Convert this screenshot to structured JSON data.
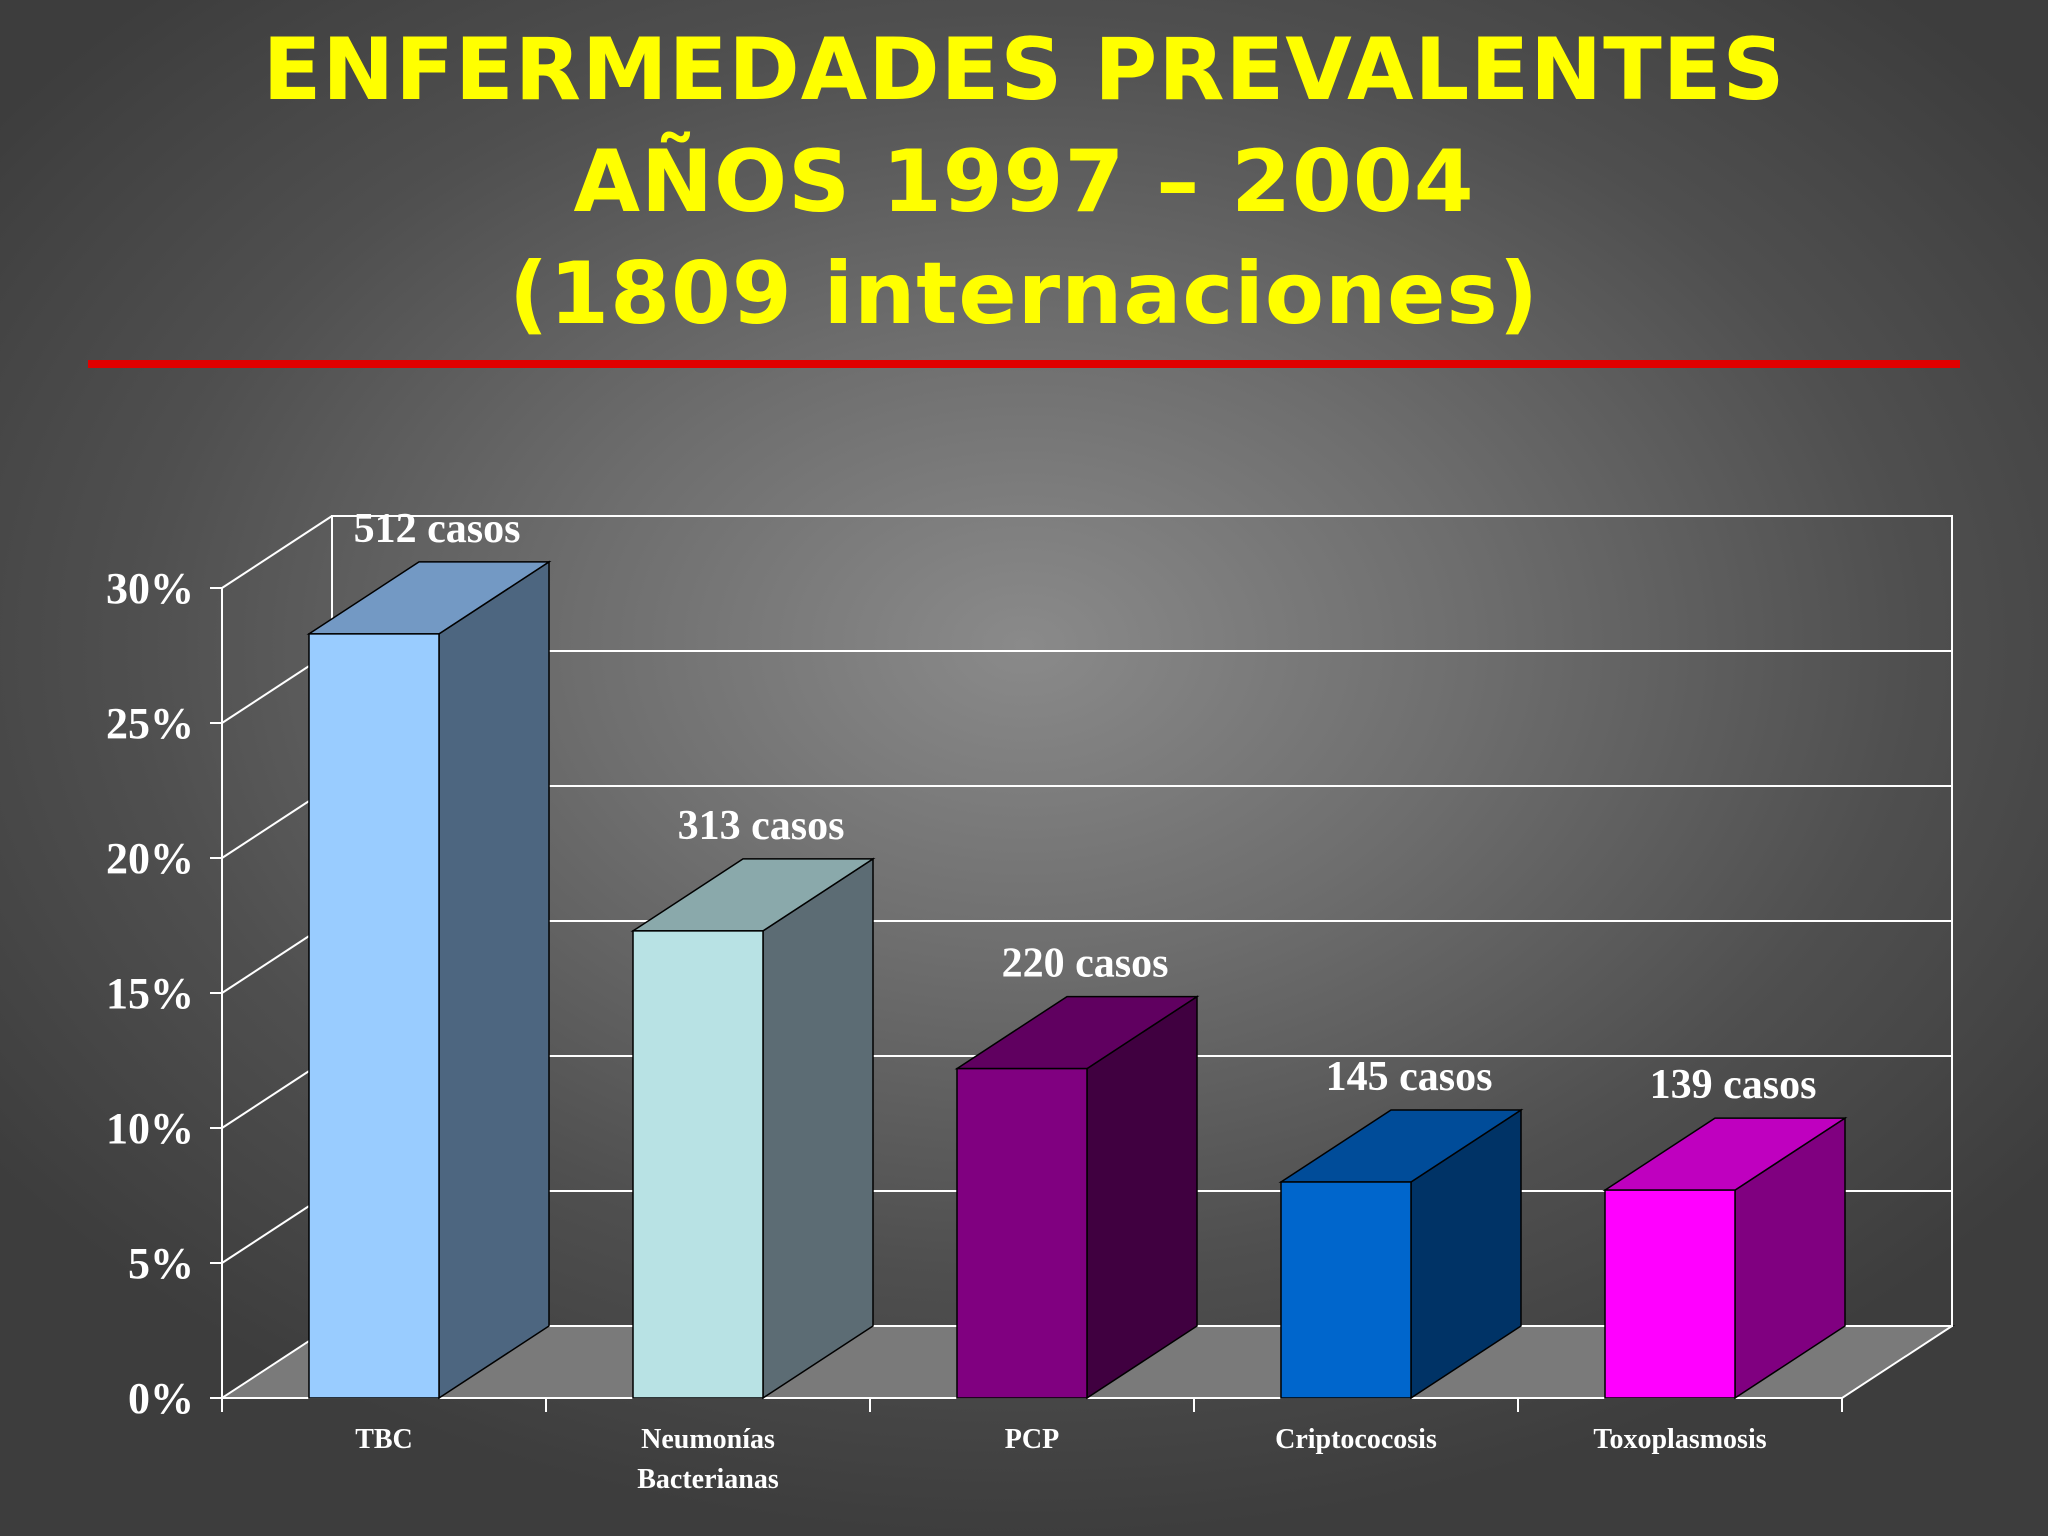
{
  "title": {
    "line1": "ENFERMEDADES PREVALENTES",
    "line2": "AÑOS 1997 – 2004",
    "line3": "(1809 internaciones)"
  },
  "colors": {
    "title": "#ffff00",
    "rule": "#e00000",
    "text": "#ffffff"
  },
  "chart_data": {
    "type": "bar",
    "style": "3d-column",
    "categories": [
      [
        "TBC"
      ],
      [
        "Neumonías",
        "Bacterianas"
      ],
      [
        "PCP"
      ],
      [
        "Criptococosis"
      ],
      [
        "Toxoplasmosis"
      ]
    ],
    "values": [
      28.3,
      17.3,
      12.2,
      8.0,
      7.7
    ],
    "data_labels": [
      "512 casos",
      "313 casos",
      "220 casos",
      "145 casos",
      "139 casos"
    ],
    "bar_colors": [
      {
        "front": "#99ccff",
        "top": "#7399c4",
        "side": "#4d6680"
      },
      {
        "front": "#b8e2e4",
        "top": "#8aa9ab",
        "side": "#5c6c74"
      },
      {
        "front": "#800080",
        "top": "#600060",
        "side": "#400040"
      },
      {
        "front": "#0066cc",
        "top": "#004c99",
        "side": "#003366"
      },
      {
        "front": "#ff00ff",
        "top": "#bf00bf",
        "side": "#800080"
      }
    ],
    "ylim": [
      0,
      30
    ],
    "yticks": [
      "0%",
      "5%",
      "10%",
      "15%",
      "20%",
      "25%",
      "30%"
    ],
    "grid": true,
    "xlabel": "",
    "ylabel": ""
  }
}
